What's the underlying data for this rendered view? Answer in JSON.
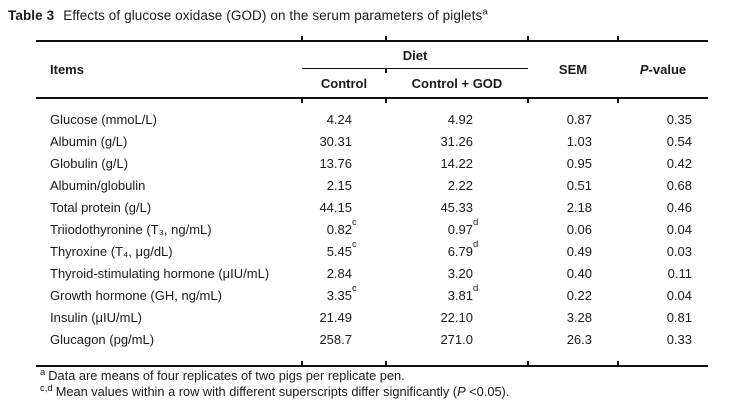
{
  "caption": {
    "label": "Table 3",
    "text": "Effects of glucose oxidase (GOD) on the serum parameters of piglets",
    "superscript": "a"
  },
  "table": {
    "items_header": "Items",
    "diet_header": "Diet",
    "control_header": "Control",
    "god_header": "Control + GOD",
    "sem_header": "SEM",
    "pvalue_header": {
      "italic": "P",
      "rest": "-value"
    },
    "rows": [
      {
        "item": "Glucose (mmoL/L)",
        "control": "4.24",
        "control_sup": "",
        "god": "4.92",
        "god_sup": "",
        "sem": "0.87",
        "p": "0.35"
      },
      {
        "item": "Albumin (g/L)",
        "control": "30.31",
        "control_sup": "",
        "god": "31.26",
        "god_sup": "",
        "sem": "1.03",
        "p": "0.54"
      },
      {
        "item": "Globulin (g/L)",
        "control": "13.76",
        "control_sup": "",
        "god": "14.22",
        "god_sup": "",
        "sem": "0.95",
        "p": "0.42"
      },
      {
        "item": "Albumin/globulin",
        "control": "2.15",
        "control_sup": "",
        "god": "2.22",
        "god_sup": "",
        "sem": "0.51",
        "p": "0.68"
      },
      {
        "item": "Total protein (g/L)",
        "control": "44.15",
        "control_sup": "",
        "god": "45.33",
        "god_sup": "",
        "sem": "2.18",
        "p": "0.46"
      },
      {
        "item": "Triiodothyronine (T₃, ng/mL)",
        "control": "0.82",
        "control_sup": "c",
        "god": "0.97",
        "god_sup": "d",
        "sem": "0.06",
        "p": "0.04"
      },
      {
        "item": "Thyroxine (T₄, μg/dL)",
        "control": "5.45",
        "control_sup": "c",
        "god": "6.79",
        "god_sup": "d",
        "sem": "0.49",
        "p": "0.03"
      },
      {
        "item": "Thyroid-stimulating hormone (μIU/mL)",
        "control": "2.84",
        "control_sup": "",
        "god": "3.20",
        "god_sup": "",
        "sem": "0.40",
        "p": "0.11"
      },
      {
        "item": "Growth hormone (GH, ng/mL)",
        "control": "3.35",
        "control_sup": "c",
        "god": "3.81",
        "god_sup": "d",
        "sem": "0.22",
        "p": "0.04"
      },
      {
        "item": "Insulin (μIU/mL)",
        "control": "21.49",
        "control_sup": "",
        "god": "22.10",
        "god_sup": "",
        "sem": "3.28",
        "p": "0.81"
      },
      {
        "item": "Glucagon (pg/mL)",
        "control": "258.7",
        "control_sup": "",
        "god": "271.0",
        "god_sup": "",
        "sem": "26.3",
        "p": "0.33"
      }
    ]
  },
  "footnotes": {
    "a": {
      "sup": "a",
      "text": "Data are means of four replicates of two pigs per replicate pen."
    },
    "cd": {
      "sup": "c,d",
      "text_before": "Mean values within a row with different superscripts differ significantly (",
      "italic": "P",
      "text_after": " <0.05)."
    }
  }
}
